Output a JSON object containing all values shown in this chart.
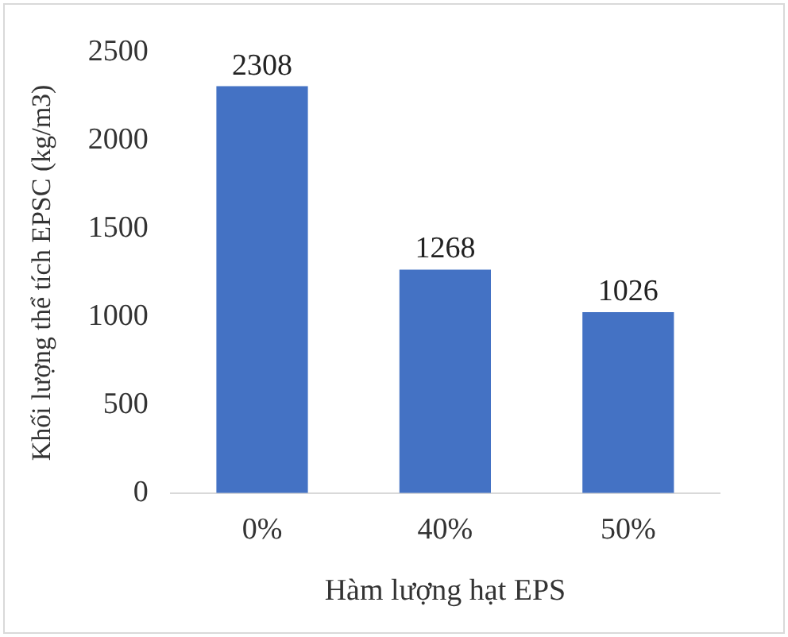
{
  "chart_data": {
    "type": "bar",
    "categories": [
      "0%",
      "40%",
      "50%"
    ],
    "values": [
      2308,
      1268,
      1026
    ],
    "color": "#4472c4",
    "ylim": [
      0,
      2500
    ],
    "yticks": [
      0,
      500,
      1000,
      1500,
      2000,
      2500
    ],
    "xlabel": "Hàm lượng hạt EPS",
    "ylabel": "Khối lượng thể tích EPSC (kg/m3)",
    "data_labels": true,
    "grid": false,
    "legend": false
  }
}
